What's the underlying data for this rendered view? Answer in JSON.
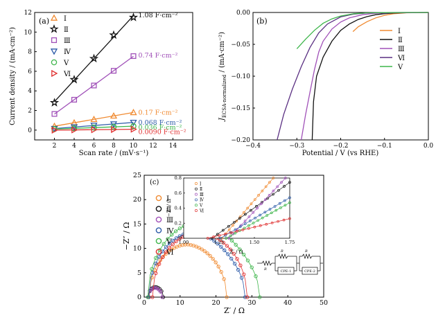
{
  "chart_data": [
    {
      "panel_label": "(a)",
      "type": "scatter",
      "xlabel": "Scan rate / (mV·s⁻¹)",
      "ylabel": "Current density / (mA·cm⁻²)",
      "xlim": [
        0,
        16
      ],
      "ylim": [
        -1,
        12
      ],
      "xticks": [
        2,
        4,
        6,
        8,
        10,
        12,
        14
      ],
      "yticks": [
        0,
        2,
        4,
        6,
        8,
        10,
        12
      ],
      "grid": false,
      "legend_position": "top-left",
      "series": [
        {
          "name": "Ⅰ",
          "marker": "triangle-up",
          "color": "#f08a30",
          "x": [
            2,
            4,
            6,
            8,
            10
          ],
          "y": [
            0.4,
            0.75,
            1.1,
            1.45,
            1.8
          ],
          "fit_label": "0.17 F·cm⁻²"
        },
        {
          "name": "Ⅱ",
          "marker": "star",
          "color": "#111111",
          "x": [
            2,
            4,
            6,
            8,
            10
          ],
          "y": [
            2.8,
            5.15,
            7.3,
            9.7,
            11.5
          ],
          "fit_label": "1.08 F·cm⁻²"
        },
        {
          "name": "Ⅲ",
          "marker": "square",
          "color": "#a050b8",
          "x": [
            2,
            4,
            6,
            8,
            10
          ],
          "y": [
            1.65,
            3.1,
            4.55,
            6.05,
            7.55
          ],
          "fit_label": "0.74 F·cm⁻²"
        },
        {
          "name": "Ⅳ",
          "marker": "triangle-down",
          "color": "#2b5aa8",
          "x": [
            2,
            4,
            6,
            8,
            10
          ],
          "y": [
            0.15,
            0.32,
            0.48,
            0.62,
            0.78
          ],
          "fit_label": "0.068 F·cm⁻²"
        },
        {
          "name": "Ⅴ",
          "marker": "circle",
          "color": "#3db54a",
          "x": [
            2,
            4,
            6,
            8,
            10
          ],
          "y": [
            0.1,
            0.18,
            0.26,
            0.33,
            0.4
          ],
          "fit_label": "0.036 F·cm⁻²"
        },
        {
          "name": "Ⅵ",
          "marker": "triangle-right",
          "color": "#e03030",
          "x": [
            2,
            4,
            6,
            8,
            10
          ],
          "y": [
            0.0,
            0.02,
            0.04,
            0.06,
            0.09
          ],
          "fit_label": "0.0090 F·cm⁻²"
        }
      ]
    },
    {
      "panel_label": "(b)",
      "type": "line",
      "xlabel": "Potential / V (vs RHE)",
      "ylabel_main": "J",
      "ylabel_sub": "ECSA-normalized",
      "ylabel_rest": " / (mA·cm⁻²)",
      "xlim": [
        -0.4,
        0.0
      ],
      "ylim": [
        -0.2,
        0.0
      ],
      "xticks": [
        -0.4,
        -0.3,
        -0.2,
        -0.1,
        0.0
      ],
      "yticks": [
        0.0,
        -0.05,
        -0.1,
        -0.15,
        -0.2
      ],
      "xtick_labels": [
        "−0.4",
        "−0.3",
        "−0.2",
        "−0.1",
        "0.0"
      ],
      "ytick_labels": [
        "0.00",
        "−0.05",
        "−0.10",
        "−0.15",
        "−0.20"
      ],
      "grid": false,
      "legend_position": "right",
      "series": [
        {
          "name": "Ⅰ",
          "color": "#f08a30",
          "x": [
            -0.172,
            -0.16,
            -0.14,
            -0.12,
            -0.1,
            -0.08,
            -0.05,
            0.0
          ],
          "y": [
            -0.03,
            -0.0225,
            -0.0145,
            -0.0085,
            -0.0045,
            -0.002,
            -0.0005,
            0.0
          ]
        },
        {
          "name": "Ⅱ",
          "color": "#111111",
          "x": [
            -0.265,
            -0.262,
            -0.255,
            -0.24,
            -0.22,
            -0.2,
            -0.18,
            -0.16,
            -0.14,
            -0.12,
            -0.1,
            -0.08,
            -0.05,
            0.0
          ],
          "y": [
            -0.2,
            -0.14,
            -0.1,
            -0.07,
            -0.045,
            -0.028,
            -0.018,
            -0.011,
            -0.0065,
            -0.0035,
            -0.0018,
            -0.0009,
            -0.0003,
            0.0
          ]
        },
        {
          "name": "Ⅲ",
          "color": "#a050b8",
          "x": [
            -0.29,
            -0.28,
            -0.27,
            -0.26,
            -0.25,
            -0.24,
            -0.22,
            -0.2,
            -0.18,
            -0.15,
            -0.12,
            -0.08,
            0.0
          ],
          "y": [
            -0.2,
            -0.16,
            -0.125,
            -0.09,
            -0.062,
            -0.045,
            -0.026,
            -0.015,
            -0.0085,
            -0.0035,
            -0.0012,
            -0.0003,
            0.0
          ]
        },
        {
          "name": "Ⅵ",
          "color": "#5a2f82",
          "x": [
            -0.345,
            -0.33,
            -0.31,
            -0.29,
            -0.27,
            -0.25,
            -0.23,
            -0.2,
            -0.17,
            -0.14,
            -0.1,
            -0.05,
            0.0
          ],
          "y": [
            -0.2,
            -0.16,
            -0.12,
            -0.085,
            -0.055,
            -0.032,
            -0.018,
            -0.007,
            -0.0025,
            -0.0008,
            -0.0002,
            0.0,
            0.0
          ]
        },
        {
          "name": "Ⅴ",
          "color": "#3db54a",
          "x": [
            -0.3,
            -0.28,
            -0.26,
            -0.24,
            -0.22,
            -0.2,
            -0.17,
            -0.14,
            -0.1,
            -0.05,
            0.0
          ],
          "y": [
            -0.057,
            -0.042,
            -0.028,
            -0.017,
            -0.01,
            -0.0055,
            -0.002,
            -0.0007,
            -0.0002,
            0.0,
            0.0
          ]
        }
      ]
    },
    {
      "panel_label": "(c)",
      "type": "scatter",
      "xlabel": "Z′ / Ω",
      "ylabel": "−Z″ / Ω",
      "xlim": [
        0,
        50
      ],
      "ylim": [
        0,
        25
      ],
      "xticks": [
        0,
        10,
        20,
        30,
        40,
        50
      ],
      "yticks": [
        0,
        5,
        10,
        15,
        20,
        25
      ],
      "grid": false,
      "legend_position": "left",
      "series": [
        {
          "name": "Ⅰ",
          "color": "#f08a30",
          "center": 12.2,
          "radius": 10.8,
          "drop": 0.08,
          "x_end": 23.0,
          "fit": true
        },
        {
          "name": "Ⅱ",
          "color": "#111111",
          "center": 3.2,
          "radius": 2.1,
          "drop": 0.1,
          "x_end": 5.3,
          "fit": true
        },
        {
          "name": "Ⅲ",
          "color": "#a050b8",
          "center": 3.1,
          "radius": 1.9,
          "drop": 0.1,
          "x_end": 5.0,
          "fit": true
        },
        {
          "name": "Ⅳ",
          "color": "#2b5aa8",
          "center": 14.7,
          "radius": 13.4,
          "drop": 0.22,
          "x_end": 28.1,
          "fit": true
        },
        {
          "name": "Ⅴ",
          "color": "#3db54a",
          "center": 16.6,
          "radius": 15.6,
          "drop": 0.28,
          "x_end": 32.2,
          "fit": true
        },
        {
          "name": "Ⅵ",
          "color": "#e03030",
          "center": 15.5,
          "radius": 13.2,
          "drop": 0.05,
          "x_end": 28.7,
          "fit": true
        }
      ],
      "inset": {
        "xlabel": "Z′ / Ω",
        "ylabel": "−Z″ / Ω",
        "xlim": [
          1.0,
          1.75
        ],
        "ylim": [
          0,
          0.8
        ],
        "xticks": [
          1.0,
          1.25,
          1.5,
          1.75
        ],
        "yticks": [
          0,
          0.2,
          0.4,
          0.6,
          0.8
        ],
        "xtick_labels": [
          "1.00",
          "1.25",
          "1.50",
          "1.75"
        ],
        "ytick_labels": [
          "0",
          "0.2",
          "0.4",
          "0.6",
          "0.8"
        ],
        "series": [
          {
            "name": "Ⅰ",
            "color": "#f08a30",
            "x0": 1.27,
            "slope": 2.2
          },
          {
            "name": "Ⅱ",
            "color": "#111111",
            "x0": 1.2,
            "slope": 1.35
          },
          {
            "name": "Ⅲ",
            "color": "#a050b8",
            "x0": 1.32,
            "slope": 2.0
          },
          {
            "name": "Ⅳ",
            "color": "#2b5aa8",
            "x0": 1.26,
            "slope": 1.1
          },
          {
            "name": "Ⅴ",
            "color": "#3db54a",
            "x0": 1.3,
            "slope": 1.05
          },
          {
            "name": "Ⅵ",
            "color": "#e03030",
            "x0": 1.17,
            "slope": 0.45
          }
        ]
      },
      "circuit": {
        "resistor_labels": [
          "R",
          "R",
          "R"
        ],
        "cpe_labels": [
          "CPE-1",
          "CPE-2"
        ]
      }
    }
  ]
}
